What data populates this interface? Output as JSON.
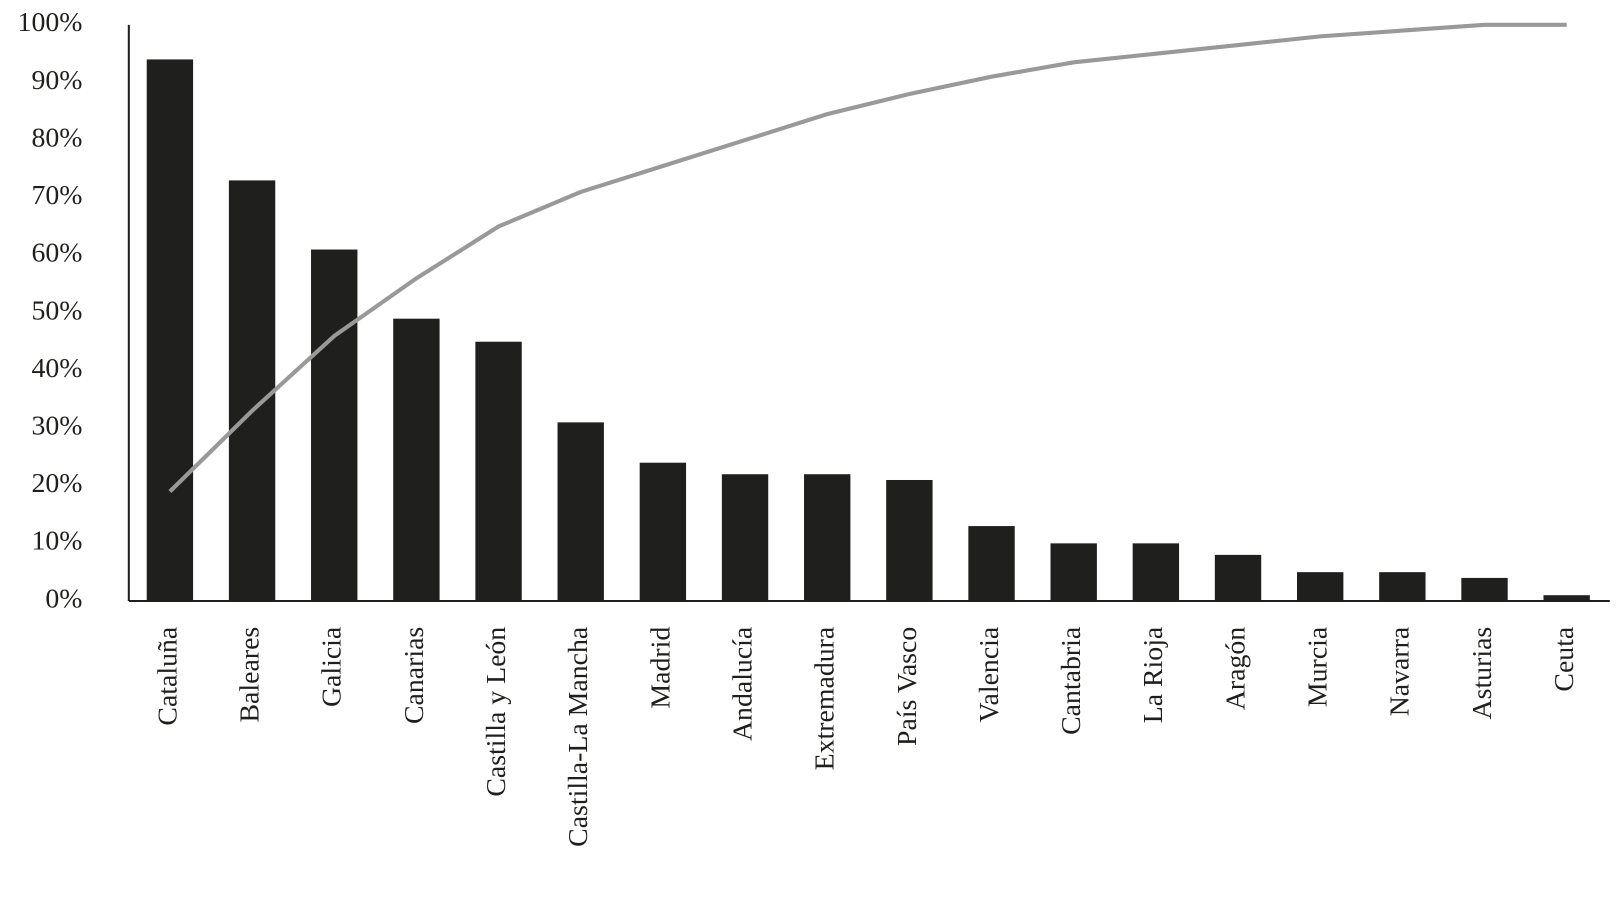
{
  "chart_data": {
    "type": "pareto",
    "categories": [
      "Cataluña",
      "Baleares",
      "Galicia",
      "Canarias",
      "Castilla y León",
      "Castilla-La Mancha",
      "Madrid",
      "Andalucía",
      "Extremadura",
      "País Vasco",
      "Valencia",
      "Cantabria",
      "La Rioja",
      "Aragón",
      "Murcia",
      "Navarra",
      "Asturias",
      "Ceuta"
    ],
    "series": [
      {
        "type": "bar",
        "color": "#1f1f1d",
        "values": [
          94,
          73,
          61,
          49,
          45,
          31,
          24,
          22,
          22,
          21,
          13,
          10,
          10,
          8,
          5,
          5,
          4,
          1
        ]
      },
      {
        "type": "line",
        "color": "#999999",
        "values": [
          19,
          33,
          46,
          56,
          65,
          71,
          75.5,
          80,
          84.5,
          88,
          91,
          93.5,
          95,
          96.5,
          98,
          99,
          100,
          100
        ]
      }
    ],
    "ylim": [
      0,
      100
    ],
    "yticks": [
      {
        "value": 0,
        "label": "0%"
      },
      {
        "value": 10,
        "label": "10%"
      },
      {
        "value": 20,
        "label": "20%"
      },
      {
        "value": 30,
        "label": "30%"
      },
      {
        "value": 40,
        "label": "40%"
      },
      {
        "value": 50,
        "label": "50%"
      },
      {
        "value": 60,
        "label": "60%"
      },
      {
        "value": 70,
        "label": "70%"
      },
      {
        "value": 80,
        "label": "80%"
      },
      {
        "value": 90,
        "label": "90%"
      },
      {
        "value": 100,
        "label": "100%"
      }
    ],
    "grid": false
  }
}
